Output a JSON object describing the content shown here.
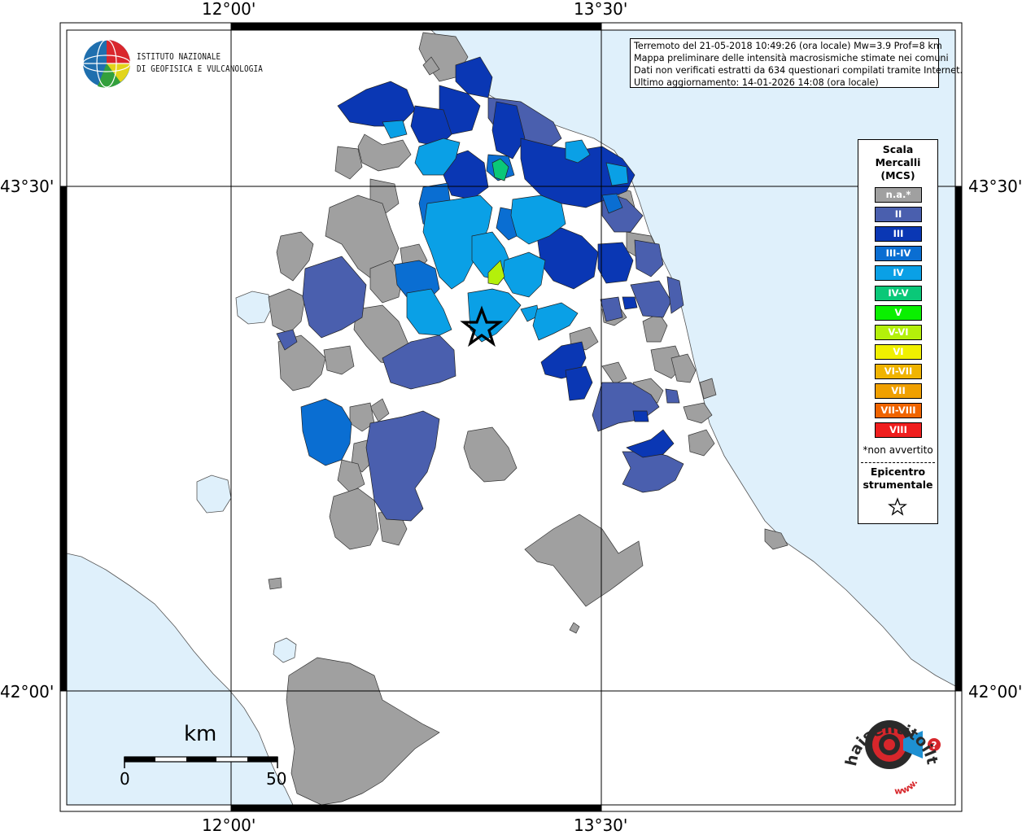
{
  "map": {
    "lon_labels": [
      "12°00'",
      "13°30'"
    ],
    "lat_labels": [
      "43°30'",
      "42°00'"
    ],
    "colors": {
      "sea": "#dff0fb",
      "land": "#ffffff",
      "na": "#a0a0a0",
      "frame": "#000000"
    }
  },
  "header": {
    "line1": "Terremoto del 21-05-2018 10:49:26 (ora locale) Mw=3.9 Prof=8 km",
    "line2": "Mappa preliminare delle intensità macrosismiche stimate nei comuni",
    "line3": "Dati non verificati estratti da 634 questionari compilati tramite Internet.",
    "line4": "Ultimo aggiornamento: 14-01-2026 14:08 (ora locale)"
  },
  "ingv_logo": {
    "line1": "ISTITUTO NAZIONALE",
    "line2": "DI GEOFISICA E VULCANOLOGIA"
  },
  "legend": {
    "title_line1": "Scala",
    "title_line2": "Mercalli",
    "title_line3": "(MCS)",
    "items": [
      {
        "label": "n.a.*",
        "color": "#a0a0a0"
      },
      {
        "label": "II",
        "color": "#4a5fae"
      },
      {
        "label": "III",
        "color": "#0a37b4"
      },
      {
        "label": "III-IV",
        "color": "#0a6ed2"
      },
      {
        "label": "IV",
        "color": "#0aa0e6"
      },
      {
        "label": "IV-V",
        "color": "#0ac878"
      },
      {
        "label": "V",
        "color": "#0af000"
      },
      {
        "label": "V-VI",
        "color": "#b4f00a"
      },
      {
        "label": "VI",
        "color": "#f0f000"
      },
      {
        "label": "VI-VII",
        "color": "#f0b400"
      },
      {
        "label": "VII",
        "color": "#f0a000"
      },
      {
        "label": "VII-VIII",
        "color": "#f06400"
      },
      {
        "label": "VIII",
        "color": "#f01e1e"
      }
    ],
    "note": "*non avvertito",
    "epicenter_line1": "Epicentro",
    "epicenter_line2": "strumentale"
  },
  "scale_bar": {
    "unit": "km",
    "min": "0",
    "max": "50"
  },
  "hsit_logo": {
    "text": "haisentitoilterremoto.it",
    "prefix": "www."
  }
}
